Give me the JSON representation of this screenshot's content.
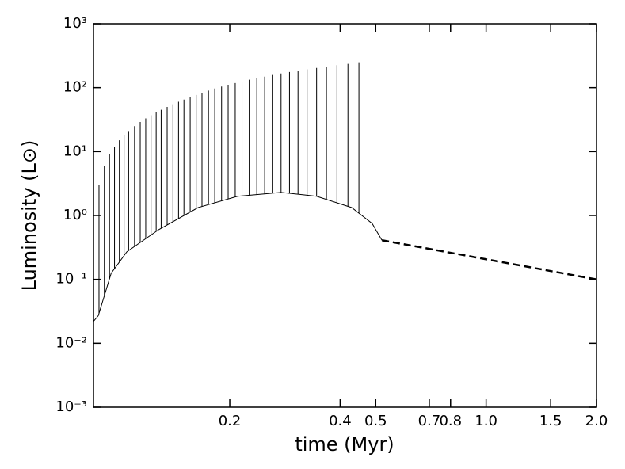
{
  "chart_data": {
    "type": "line",
    "xlabel": "time (Myr)",
    "ylabel": "Luminosity (L⊙)",
    "xscale": "log",
    "yscale": "log",
    "xlim": [
      0.085,
      2.0
    ],
    "ylim": [
      0.001,
      1000
    ],
    "xticks": [
      0.2,
      0.4,
      0.5,
      0.7,
      0.8,
      {
        "value": 1,
        "label": "1.0"
      },
      1.5,
      {
        "value": 2,
        "label": "2.0"
      }
    ],
    "yticks": [
      {
        "value": 0.001,
        "label": "10⁻³"
      },
      {
        "value": 0.01,
        "label": "10⁻²"
      },
      {
        "value": 0.1,
        "label": "10⁻¹"
      },
      {
        "value": 1,
        "label": "10⁰"
      },
      {
        "value": 10,
        "label": "10¹"
      },
      {
        "value": 100,
        "label": "10²"
      },
      {
        "value": 1000,
        "label": "10³"
      }
    ],
    "series": [
      {
        "x": [
          0.085,
          0.0876,
          0.09,
          0.095,
          0.1048,
          0.128,
          0.164,
          0.21,
          0.276,
          0.345,
          0.43,
          0.489,
          0.52
        ],
        "values": [
          0.022,
          0.027,
          0.045,
          0.125,
          0.27,
          0.6,
          1.33,
          2.0,
          2.3,
          2.0,
          1.33,
          0.75,
          0.41
        ],
        "color": "#000000",
        "style": "solid"
      },
      {
        "x": [
          0.52,
          2.0
        ],
        "values": [
          0.41,
          0.1
        ],
        "color": "#000000",
        "style": "dashed"
      }
    ],
    "spikes": {
      "x": [
        0.088,
        0.091,
        0.094,
        0.097,
        0.1,
        0.103,
        0.106,
        0.11,
        0.114,
        0.118,
        0.122,
        0.126,
        0.13,
        0.135,
        0.14,
        0.145,
        0.15,
        0.156,
        0.162,
        0.168,
        0.175,
        0.182,
        0.19,
        0.198,
        0.207,
        0.216,
        0.226,
        0.237,
        0.249,
        0.262,
        0.276,
        0.291,
        0.307,
        0.325,
        0.345,
        0.367,
        0.392,
        0.42,
        0.45
      ],
      "values": [
        3,
        6,
        9,
        12,
        15,
        18,
        21,
        25,
        29,
        33,
        37,
        41,
        45,
        50,
        55,
        60,
        65,
        71,
        77,
        83,
        90,
        97,
        104,
        111,
        118,
        125,
        133,
        141,
        149,
        158,
        167,
        176,
        185,
        194,
        204,
        214,
        225,
        236,
        250
      ],
      "color": "#000000"
    }
  }
}
